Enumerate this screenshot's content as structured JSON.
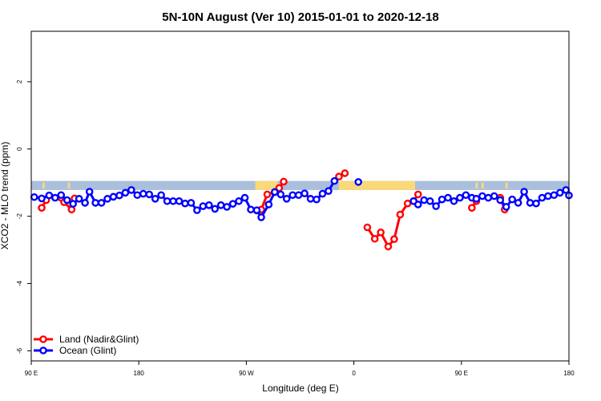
{
  "chart_data": {
    "type": "line",
    "title": "5N-10N August (Ver 10)   2015-01-01 to 2020-12-18",
    "xlabel": "Longitude (deg E)",
    "ylabel": "XCO2 - MLO trend (ppm)",
    "xlim": [
      0,
      360
    ],
    "ylim": [
      -6.3,
      3.5
    ],
    "x_ticks": [
      {
        "value": 0,
        "label": "90 E"
      },
      {
        "value": 72,
        "label": "180"
      },
      {
        "value": 144,
        "label": "90 W"
      },
      {
        "value": 216,
        "label": "0"
      },
      {
        "value": 288,
        "label": "90 E"
      },
      {
        "value": 360,
        "label": "180"
      }
    ],
    "y_ticks": [
      {
        "value": 2,
        "label": "2"
      },
      {
        "value": 0,
        "label": "0"
      },
      {
        "value": -2,
        "label": "-2"
      },
      {
        "value": -4,
        "label": "-4"
      },
      {
        "value": -6,
        "label": "-6"
      }
    ],
    "band": {
      "y_top": -0.95,
      "y_bottom": -1.22,
      "ocean_color": "#a9bfdc",
      "land_color": "#f9d97a"
    },
    "land_regions": [
      [
        150,
        165
      ],
      [
        206,
        257
      ]
    ],
    "land_specks": [
      8,
      25,
      152,
      298,
      302,
      318
    ],
    "series": [
      {
        "name": "Land (Nadir&Glint)",
        "color": "#ff0000",
        "segments": [
          [
            [
              7,
              -1.75
            ],
            [
              10,
              -1.52
            ]
          ],
          [
            [
              20,
              -1.45
            ],
            [
              22,
              -1.58
            ],
            [
              27,
              -1.8
            ],
            [
              29,
              -1.47
            ]
          ],
          [
            [
              151,
              -1.83
            ],
            [
              154,
              -1.8
            ],
            [
              158,
              -1.35
            ],
            [
              163,
              -1.28
            ],
            [
              166,
              -1.16
            ],
            [
              169,
              -0.97
            ]
          ],
          [
            [
              206,
              -0.82
            ],
            [
              210,
              -0.72
            ]
          ],
          [
            [
              225,
              -2.33
            ],
            [
              230,
              -2.67
            ],
            [
              234,
              -2.48
            ],
            [
              239,
              -2.9
            ],
            [
              243,
              -2.68
            ],
            [
              247,
              -1.95
            ],
            [
              252,
              -1.62
            ],
            [
              256,
              -1.55
            ],
            [
              259,
              -1.35
            ]
          ],
          [
            [
              295,
              -1.75
            ],
            [
              298,
              -1.55
            ]
          ],
          [
            [
              314,
              -1.45
            ],
            [
              317,
              -1.8
            ]
          ]
        ]
      },
      {
        "name": "Ocean (Glint)",
        "color": "#0000ff",
        "segments": [
          [
            [
              2,
              -1.43
            ],
            [
              7,
              -1.47
            ],
            [
              12,
              -1.38
            ],
            [
              16,
              -1.45
            ],
            [
              20,
              -1.37
            ],
            [
              24,
              -1.52
            ],
            [
              28,
              -1.63
            ],
            [
              32,
              -1.48
            ],
            [
              36,
              -1.6
            ],
            [
              39,
              -1.27
            ],
            [
              43,
              -1.6
            ],
            [
              47,
              -1.6
            ],
            [
              51,
              -1.48
            ],
            [
              55,
              -1.42
            ],
            [
              59,
              -1.38
            ],
            [
              63,
              -1.3
            ],
            [
              67,
              -1.22
            ],
            [
              71,
              -1.37
            ],
            [
              75,
              -1.33
            ],
            [
              79,
              -1.35
            ],
            [
              83,
              -1.48
            ],
            [
              87,
              -1.37
            ],
            [
              91,
              -1.55
            ],
            [
              95,
              -1.55
            ],
            [
              99,
              -1.55
            ],
            [
              103,
              -1.62
            ],
            [
              107,
              -1.6
            ],
            [
              111,
              -1.82
            ],
            [
              115,
              -1.7
            ],
            [
              119,
              -1.67
            ],
            [
              123,
              -1.78
            ],
            [
              127,
              -1.67
            ],
            [
              131,
              -1.72
            ],
            [
              135,
              -1.63
            ],
            [
              139,
              -1.55
            ],
            [
              143,
              -1.45
            ],
            [
              147,
              -1.8
            ],
            [
              151,
              -1.82
            ],
            [
              154,
              -2.03
            ],
            [
              159,
              -1.65
            ],
            [
              163,
              -1.28
            ],
            [
              167,
              -1.35
            ],
            [
              171,
              -1.48
            ],
            [
              175,
              -1.37
            ],
            [
              179,
              -1.37
            ],
            [
              183,
              -1.32
            ],
            [
              187,
              -1.48
            ],
            [
              191,
              -1.5
            ],
            [
              195,
              -1.33
            ],
            [
              199,
              -1.25
            ],
            [
              203,
              -0.95
            ]
          ],
          [
            [
              219,
              -0.98
            ]
          ],
          [
            [
              256,
              -1.55
            ],
            [
              259,
              -1.65
            ],
            [
              263,
              -1.52
            ],
            [
              267,
              -1.55
            ],
            [
              271,
              -1.7
            ],
            [
              275,
              -1.5
            ],
            [
              279,
              -1.45
            ],
            [
              283,
              -1.55
            ],
            [
              287,
              -1.45
            ],
            [
              291,
              -1.37
            ],
            [
              295,
              -1.45
            ],
            [
              298,
              -1.48
            ],
            [
              302,
              -1.4
            ],
            [
              306,
              -1.45
            ],
            [
              310,
              -1.4
            ],
            [
              314,
              -1.52
            ],
            [
              318,
              -1.72
            ],
            [
              322,
              -1.5
            ],
            [
              326,
              -1.6
            ],
            [
              330,
              -1.27
            ],
            [
              334,
              -1.6
            ],
            [
              338,
              -1.62
            ],
            [
              342,
              -1.45
            ],
            [
              346,
              -1.4
            ],
            [
              350,
              -1.37
            ],
            [
              354,
              -1.3
            ],
            [
              358,
              -1.22
            ],
            [
              360,
              -1.38
            ]
          ]
        ]
      }
    ],
    "legend_position": "bottom-left"
  }
}
